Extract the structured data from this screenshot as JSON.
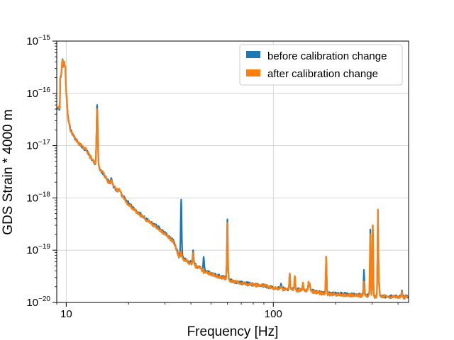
{
  "chart_data": {
    "type": "line",
    "title": "",
    "xlabel": "Frequency [Hz]",
    "ylabel": "GDS Strain * 4000 m",
    "x_scale": "log",
    "y_scale": "log",
    "xlim": [
      9.0,
      450.0
    ],
    "ylim": [
      1e-20,
      1e-15
    ],
    "grid": true,
    "legend_position": "top-right",
    "x_ticks": [
      {
        "value": 10,
        "label": "10"
      },
      {
        "value": 100,
        "label": "100"
      }
    ],
    "y_ticks": [
      {
        "value": 1e-20,
        "base": "10",
        "exp": "−20"
      },
      {
        "value": 1e-19,
        "base": "10",
        "exp": "−19"
      },
      {
        "value": 1e-18,
        "base": "10",
        "exp": "−18"
      },
      {
        "value": 1e-17,
        "base": "10",
        "exp": "−17"
      },
      {
        "value": 1e-16,
        "base": "10",
        "exp": "−16"
      },
      {
        "value": 1e-15,
        "base": "10",
        "exp": "−15"
      }
    ],
    "series": [
      {
        "name": "before calibration change",
        "color": "#1f77b4",
        "baseline": [
          [
            9.0,
            5.5e-17
          ],
          [
            9.3,
            5e-17
          ],
          [
            9.55,
            1.5e-16
          ],
          [
            9.75,
            4.3e-16
          ],
          [
            9.9,
            3e-16
          ],
          [
            10.0,
            1e-16
          ],
          [
            10.2,
            3.5e-17
          ],
          [
            10.5,
            2e-17
          ],
          [
            11.0,
            1.4e-17
          ],
          [
            11.5,
            1.1e-17
          ],
          [
            12.0,
            9e-18
          ],
          [
            12.5,
            8e-18
          ],
          [
            13.0,
            6.5e-18
          ],
          [
            13.5,
            5e-18
          ],
          [
            14.0,
            4e-18
          ],
          [
            15.0,
            3e-18
          ],
          [
            16.0,
            2.1e-18
          ],
          [
            17.0,
            1.6e-18
          ],
          [
            18.0,
            1.3e-18
          ],
          [
            20.0,
            8e-19
          ],
          [
            22.0,
            5.5e-19
          ],
          [
            25.0,
            3.7e-19
          ],
          [
            28.0,
            2.7e-19
          ],
          [
            30.0,
            2.1e-19
          ],
          [
            33.0,
            1.5e-19
          ],
          [
            35.0,
            8e-20
          ],
          [
            38.0,
            6.5e-20
          ],
          [
            42.0,
            5.3e-20
          ],
          [
            47.0,
            4e-20
          ],
          [
            52.0,
            3.4e-20
          ],
          [
            58.0,
            3e-20
          ],
          [
            65.0,
            2.5e-20
          ],
          [
            75.0,
            2.3e-20
          ],
          [
            90.0,
            2.1e-20
          ],
          [
            100.0,
            1.9e-20
          ],
          [
            120.0,
            1.8e-20
          ],
          [
            150.0,
            1.7e-20
          ],
          [
            180.0,
            1.5e-20
          ],
          [
            220.0,
            1.45e-20
          ],
          [
            260.0,
            1.4e-20
          ],
          [
            300.0,
            1.35e-20
          ],
          [
            350.0,
            1.3e-20
          ],
          [
            400.0,
            1.3e-20
          ],
          [
            450.0,
            1.3e-20
          ]
        ],
        "peaks": [
          [
            9.6,
            4.5e-16
          ],
          [
            14.1,
            6e-17
          ],
          [
            16.5,
            2.4e-18
          ],
          [
            18.0,
            1.5e-18
          ],
          [
            27.3,
            2.6e-19
          ],
          [
            35.9,
            9.3e-19
          ],
          [
            41.0,
            1e-19
          ],
          [
            46.1,
            7.5e-20
          ],
          [
            60.0,
            3.9e-19
          ],
          [
            109.0,
            2.3e-20
          ],
          [
            120.0,
            3.6e-20
          ],
          [
            127.0,
            3.2e-20
          ],
          [
            139.0,
            2.4e-20
          ],
          [
            148.0,
            2.5e-20
          ],
          [
            150.0,
            2.3e-20
          ],
          [
            180.0,
            7.5e-20
          ],
          [
            274.0,
            4.2e-20
          ],
          [
            294.0,
            2.5e-19
          ],
          [
            302.0,
            3e-19
          ],
          [
            320.0,
            5.8e-19
          ],
          [
            324.0,
            2.4e-20
          ],
          [
            418.0,
            1.7e-20
          ]
        ]
      },
      {
        "name": "after calibration change",
        "color": "#ff7f0e",
        "baseline": [
          [
            9.0,
            5.3e-17
          ],
          [
            9.3,
            5.5e-17
          ],
          [
            9.55,
            1.6e-16
          ],
          [
            9.75,
            4.4e-16
          ],
          [
            9.9,
            3e-16
          ],
          [
            10.0,
            1e-16
          ],
          [
            10.2,
            3.3e-17
          ],
          [
            10.5,
            1.9e-17
          ],
          [
            11.0,
            1.4e-17
          ],
          [
            11.5,
            1.1e-17
          ],
          [
            12.0,
            9.5e-18
          ],
          [
            12.5,
            8.5e-18
          ],
          [
            13.0,
            6.2e-18
          ],
          [
            13.5,
            5.2e-18
          ],
          [
            14.0,
            4.2e-18
          ],
          [
            15.0,
            3.1e-18
          ],
          [
            16.0,
            2e-18
          ],
          [
            17.0,
            1.6e-18
          ],
          [
            18.0,
            1.3e-18
          ],
          [
            20.0,
            7.5e-19
          ],
          [
            22.0,
            5.2e-19
          ],
          [
            25.0,
            3.5e-19
          ],
          [
            28.0,
            2.5e-19
          ],
          [
            30.0,
            2e-19
          ],
          [
            33.0,
            1.45e-19
          ],
          [
            35.0,
            7.5e-20
          ],
          [
            38.0,
            6.2e-20
          ],
          [
            42.0,
            5e-20
          ],
          [
            47.0,
            3.8e-20
          ],
          [
            52.0,
            3.3e-20
          ],
          [
            58.0,
            2.9e-20
          ],
          [
            65.0,
            2.5e-20
          ],
          [
            75.0,
            2.2e-20
          ],
          [
            90.0,
            2.1e-20
          ],
          [
            100.0,
            1.9e-20
          ],
          [
            120.0,
            1.75e-20
          ],
          [
            150.0,
            1.65e-20
          ],
          [
            180.0,
            1.45e-20
          ],
          [
            220.0,
            1.4e-20
          ],
          [
            260.0,
            1.35e-20
          ],
          [
            300.0,
            1.3e-20
          ],
          [
            350.0,
            1.3e-20
          ],
          [
            400.0,
            1.25e-20
          ],
          [
            450.0,
            1.25e-20
          ]
        ],
        "peaks": [
          [
            9.6,
            4.3e-16
          ],
          [
            14.1,
            5e-17
          ],
          [
            16.5,
            2.2e-18
          ],
          [
            18.0,
            1.5e-18
          ],
          [
            27.3,
            2.6e-19
          ],
          [
            35.9,
            9.5e-20
          ],
          [
            41.0,
            9e-20
          ],
          [
            46.1,
            3.6e-20
          ],
          [
            60.0,
            3.3e-19
          ],
          [
            109.0,
            2e-20
          ],
          [
            120.0,
            3.6e-20
          ],
          [
            127.0,
            3.2e-20
          ],
          [
            139.0,
            2.4e-20
          ],
          [
            148.0,
            2.5e-20
          ],
          [
            150.0,
            2.3e-20
          ],
          [
            180.0,
            7.5e-20
          ],
          [
            274.0,
            2.5e-20
          ],
          [
            294.0,
            2e-19
          ],
          [
            302.0,
            3e-19
          ],
          [
            320.0,
            6e-19
          ],
          [
            324.0,
            2.2e-20
          ],
          [
            418.0,
            1.6e-20
          ]
        ]
      }
    ]
  }
}
